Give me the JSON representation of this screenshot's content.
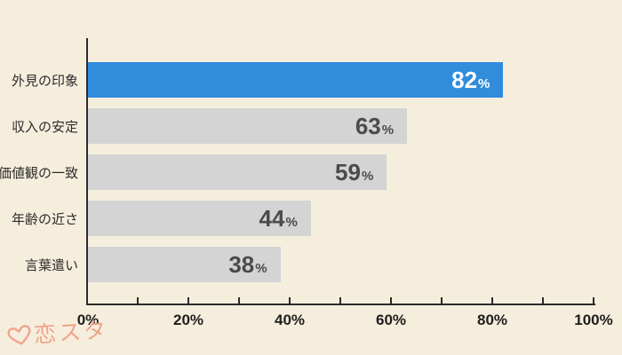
{
  "chart_data": {
    "type": "bar",
    "orientation": "horizontal",
    "title": "",
    "categories": [
      "外見の印象",
      "収入の安定",
      "価値観の一致",
      "年齢の近さ",
      "言葉遣い"
    ],
    "values": [
      82,
      63,
      59,
      44,
      38
    ],
    "value_suffix": "%",
    "xlim": [
      0,
      100
    ],
    "x_ticks": [
      "0%",
      "20%",
      "40%",
      "60%",
      "80%",
      "100%"
    ],
    "minor_tick_step_pct": 10,
    "grid": "off",
    "highlight_index": 0,
    "colors": {
      "background": "#f6eedd",
      "highlight_bar": "#318cdc",
      "default_bar": "#d3d4d3",
      "value_text": "#4b4b4b",
      "value_text_on_highlight": "#ffffff",
      "category_text": "#2b2b2b",
      "axis": "#2b2b2b",
      "tick_text": "#1e1e1e"
    }
  },
  "logo": {
    "icon": "heart-icon",
    "text": "恋スタ",
    "color": "#f0a28b"
  }
}
